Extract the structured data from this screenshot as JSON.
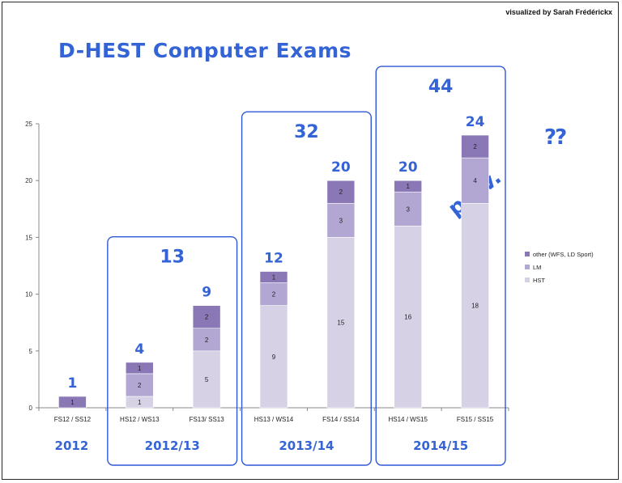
{
  "credit": "visualized by Sarah Frédérickx",
  "title": "D-HEST Computer Exams",
  "chart_data": {
    "type": "bar",
    "stacked": true,
    "categories": [
      "FS12 / SS12",
      "HS12 / WS13",
      "FS13/ SS13",
      "HS13 / WS14",
      "FS14 / SS14",
      "HS14 / WS15",
      "FS15 / SS15"
    ],
    "series": [
      {
        "name": "HST",
        "values": [
          0,
          1,
          5,
          9,
          15,
          16,
          18
        ],
        "color": "#d7d1e6"
      },
      {
        "name": "LM",
        "values": [
          0,
          2,
          2,
          2,
          3,
          3,
          4
        ],
        "color": "#b2a6d2"
      },
      {
        "name": "other (WFS, LD Sport)",
        "values": [
          1,
          1,
          2,
          1,
          2,
          1,
          2
        ],
        "color": "#8a78b6"
      }
    ],
    "data_labels": [
      [
        "",
        "1",
        "5",
        "9",
        "15",
        "16",
        "18"
      ],
      [
        "",
        "2",
        "2",
        "2",
        "3",
        "3",
        "4"
      ],
      [
        "1",
        "1",
        "2",
        "1",
        "2",
        "1",
        "2"
      ]
    ],
    "totals": [
      "1",
      "4",
      "9",
      "12",
      "20",
      "20",
      "24"
    ],
    "ylim": [
      0,
      25
    ],
    "yticks": [
      "0",
      "5",
      "10",
      "15",
      "20",
      "25"
    ],
    "legend_position": "right",
    "groups": [
      {
        "label": "2012",
        "total": "",
        "boxed": false,
        "bars": [
          0
        ]
      },
      {
        "label": "2012/13",
        "total": "13",
        "boxed": true,
        "bars": [
          1,
          2
        ]
      },
      {
        "label": "2013/14",
        "total": "32",
        "boxed": true,
        "bars": [
          3,
          4
        ]
      },
      {
        "label": "2014/15",
        "total": "44",
        "boxed": true,
        "bars": [
          5,
          6
        ]
      }
    ],
    "annotations": [
      "??",
      "prov."
    ]
  },
  "colors": {
    "handwriting": "#3463d6",
    "box": "#2f57d8",
    "axis": "#888888"
  }
}
